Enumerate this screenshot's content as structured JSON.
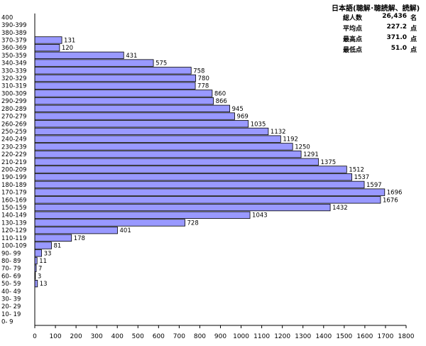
{
  "stats": {
    "title": "日本語(聴解･聴読解、読解)",
    "rows": [
      {
        "label": "総人数",
        "value": "26,436",
        "unit": "名"
      },
      {
        "label": "平均点",
        "value": "227.2",
        "unit": "点"
      },
      {
        "label": "最高点",
        "value": "371.0",
        "unit": "点"
      },
      {
        "label": "最低点",
        "value": "51.0",
        "unit": "点"
      }
    ]
  },
  "colors": {
    "bar_fill": "#9999ff",
    "bar_stroke": "#000000"
  },
  "chart_data": {
    "type": "bar",
    "orientation": "horizontal",
    "title": "",
    "xlabel": "",
    "ylabel": "",
    "xlim": [
      0,
      1800
    ],
    "x_ticks": [
      0,
      100,
      200,
      300,
      400,
      500,
      600,
      700,
      800,
      900,
      1000,
      1100,
      1200,
      1300,
      1400,
      1500,
      1600,
      1700,
      1800
    ],
    "grid": false,
    "categories": [
      "400",
      "390-399",
      "380-389",
      "370-379",
      "360-369",
      "350-359",
      "340-349",
      "330-339",
      "320-329",
      "310-319",
      "300-309",
      "290-299",
      "280-289",
      "270-279",
      "260-269",
      "250-259",
      "240-249",
      "230-239",
      "220-229",
      "210-219",
      "200-209",
      "190-199",
      "180-189",
      "170-179",
      "160-169",
      "150-159",
      "140-149",
      "130-139",
      "120-129",
      "110-119",
      "100-109",
      "90- 99",
      "80- 89",
      "70- 79",
      "60- 69",
      "50- 59",
      "40- 49",
      "30- 39",
      "20- 29",
      "10- 19",
      "0- 9"
    ],
    "values": [
      0,
      0,
      0,
      131,
      120,
      431,
      575,
      758,
      780,
      778,
      860,
      866,
      945,
      969,
      1035,
      1132,
      1192,
      1250,
      1291,
      1375,
      1512,
      1537,
      1597,
      1696,
      1676,
      1432,
      1043,
      728,
      401,
      178,
      81,
      33,
      11,
      7,
      3,
      13,
      0,
      0,
      0,
      0,
      0
    ],
    "data_labels": [
      "",
      "",
      "",
      "131",
      "120",
      "431",
      "575",
      "758",
      "780",
      "778",
      "860",
      "866",
      "945",
      "969",
      "1035",
      "1132",
      "1192",
      "1250",
      "1291",
      "1375",
      "1512",
      "1537",
      "1597",
      "1696",
      "1676",
      "1432",
      "1043",
      "728",
      "401",
      "178",
      "81",
      "33",
      "11",
      "7",
      "3",
      "13",
      "",
      "",
      "",
      "",
      ""
    ]
  }
}
